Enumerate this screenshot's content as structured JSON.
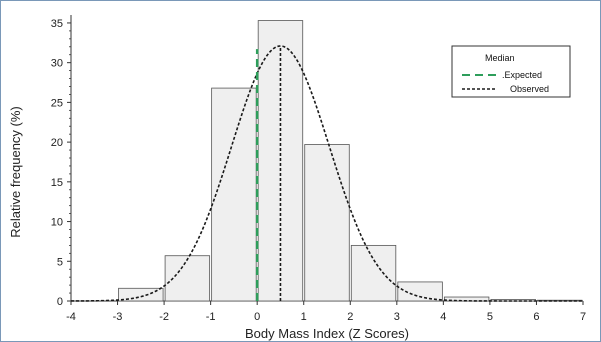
{
  "chart_data": {
    "type": "bar",
    "xlabel": "Body Mass Index (Z Scores)",
    "ylabel": "Relative frequency (%)",
    "xlim": [
      -4,
      7
    ],
    "ylim": [
      0,
      36
    ],
    "xticks": [
      "-4",
      "-3",
      "-2",
      "-1",
      "0",
      "1",
      "2",
      "3",
      "4",
      "5",
      "6",
      "7"
    ],
    "yticks": [
      "0",
      "5",
      "10",
      "15",
      "20",
      "25",
      "30",
      "35"
    ],
    "bins": [
      {
        "start": -3.0,
        "end": -2.0,
        "value": 1.6
      },
      {
        "start": -2.0,
        "end": -1.0,
        "value": 5.7
      },
      {
        "start": -1.0,
        "end": 0.0,
        "value": 26.8
      },
      {
        "start": 0.0,
        "end": 1.0,
        "value": 35.3
      },
      {
        "start": 1.0,
        "end": 2.0,
        "value": 19.7
      },
      {
        "start": 2.0,
        "end": 3.0,
        "value": 7.0
      },
      {
        "start": 3.0,
        "end": 4.0,
        "value": 2.4
      },
      {
        "start": 4.0,
        "end": 5.0,
        "value": 0.5
      },
      {
        "start": 5.0,
        "end": 6.0,
        "value": 0.2
      },
      {
        "start": 6.0,
        "end": 7.0,
        "value": 0.1
      }
    ],
    "normal_curve": {
      "mean": 0.5,
      "sd": 1.05,
      "peak": 32.1
    },
    "median_lines": [
      {
        "name": "Expected",
        "x": 0.0,
        "top": 31.7
      },
      {
        "name": "Observed",
        "x": 0.5,
        "top": 32.1
      }
    ],
    "legend": {
      "title": "Median",
      "entries": [
        ".Expected",
        "Observed"
      ],
      "placement": "top-right"
    },
    "colors": {
      "bar_fill": "#efefef",
      "bar_edge": "#555555",
      "expected": "#2e9e5b",
      "observed": "#1a1a1a",
      "frame": "#7a98b8"
    }
  }
}
